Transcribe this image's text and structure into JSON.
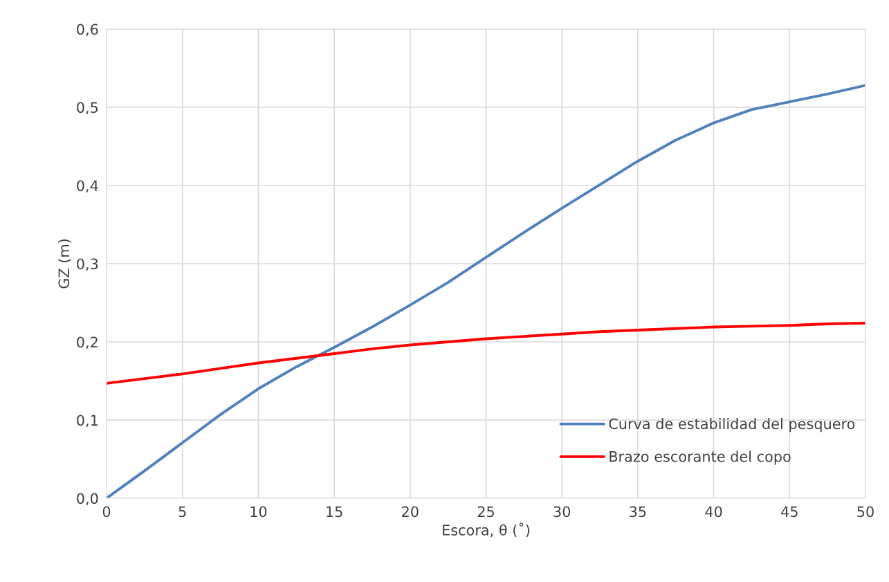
{
  "chart_data": {
    "type": "line",
    "xlabel": "Escora, θ (˚)",
    "ylabel": "GZ (m)",
    "xlim": [
      0,
      50
    ],
    "xticks": [
      0,
      5,
      10,
      15,
      20,
      25,
      30,
      35,
      40,
      45,
      50
    ],
    "ylim": [
      0,
      0.6
    ],
    "yticks": [
      {
        "value": 0,
        "label": "0,0"
      },
      {
        "value": 0.1,
        "label": "0,1"
      },
      {
        "value": 0.2,
        "label": "0,2"
      },
      {
        "value": 0.3,
        "label": "0,3"
      },
      {
        "value": 0.4,
        "label": "0,4"
      },
      {
        "value": 0.5,
        "label": "0,5"
      },
      {
        "value": 0.6,
        "label": "0,6"
      }
    ],
    "grid": true,
    "legend": "bottom right",
    "marker": "none",
    "line_style": "solid",
    "x": [
      0,
      2.5,
      5,
      7.5,
      10,
      12.5,
      15,
      17.5,
      20,
      22.5,
      25,
      27.5,
      30,
      32.5,
      35,
      37.5,
      40,
      42.5,
      45,
      47.5,
      50
    ],
    "series": [
      {
        "name": "Curva de estabilidad del pesquero",
        "color": "#4f81bd",
        "values": [
          0,
          0.035,
          0.071,
          0.107,
          0.14,
          0.168,
          0.193,
          0.219,
          0.247,
          0.276,
          0.308,
          0.34,
          0.371,
          0.401,
          0.431,
          0.458,
          0.48,
          0.497,
          0.507,
          0.517,
          0.528
        ]
      },
      {
        "name": "Brazo escorante del copo",
        "color": "#ff0000",
        "values": [
          0.147,
          0.153,
          0.159,
          0.166,
          0.173,
          0.179,
          0.185,
          0.191,
          0.196,
          0.2,
          0.204,
          0.207,
          0.21,
          0.213,
          0.215,
          0.217,
          0.219,
          0.22,
          0.221,
          0.223,
          0.224
        ]
      }
    ]
  }
}
